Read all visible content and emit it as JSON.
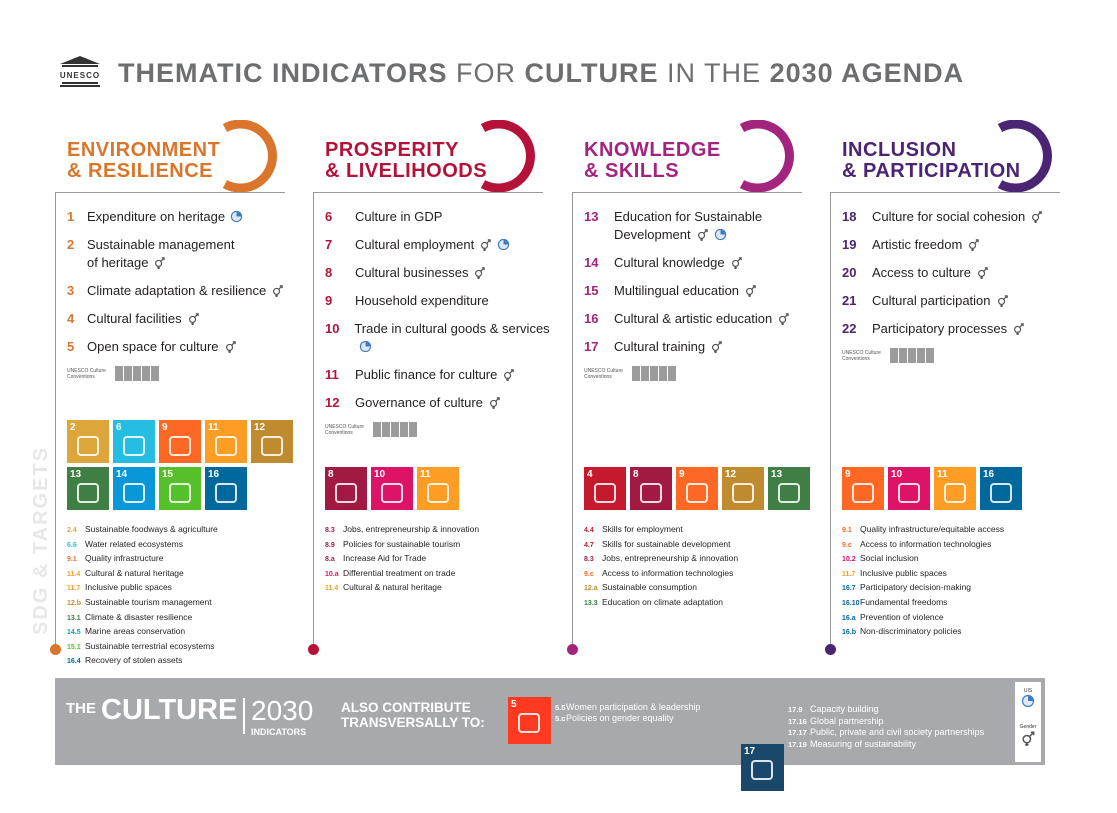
{
  "header": {
    "logo": "UNESCO",
    "title_parts": [
      "THEMATIC INDICATORS",
      "FOR",
      "CULTURE",
      "IN THE",
      "2030 AGENDA"
    ]
  },
  "sidebar_label": "SDG & TARGETS",
  "columns": [
    {
      "title_lines": [
        "ENVIRONMENT",
        "& RESILIENCE"
      ],
      "color": "#d9762b",
      "indicators": [
        {
          "number": "1",
          "label_lines": [
            "Expenditure on heritage"
          ],
          "gender": false,
          "uis": true
        },
        {
          "number": "2",
          "label_lines": [
            "Sustainable management",
            "of heritage"
          ],
          "gender": true,
          "uis": false
        },
        {
          "number": "3",
          "label_lines": [
            "Climate adaptation & resilience"
          ],
          "gender": true,
          "uis": false
        },
        {
          "number": "4",
          "label_lines": [
            "Cultural facilities"
          ],
          "gender": true,
          "uis": false
        },
        {
          "number": "5",
          "label_lines": [
            "Open space for culture"
          ],
          "gender": true,
          "uis": false
        }
      ],
      "conventions_label": "UNESCO Culture Conventions",
      "sdgs": [
        {
          "number": "2",
          "color": "#dda63a"
        },
        {
          "number": "6",
          "color": "#26bde2"
        },
        {
          "number": "9",
          "color": "#fd6925"
        },
        {
          "number": "11",
          "color": "#fd9d24"
        },
        {
          "number": "12",
          "color": "#bf8b2e"
        },
        {
          "number": "13",
          "color": "#3f7e44"
        },
        {
          "number": "14",
          "color": "#0a97d9"
        },
        {
          "number": "15",
          "color": "#56c02b"
        },
        {
          "number": "16",
          "color": "#00689d"
        }
      ],
      "targets": [
        {
          "code": "2.4",
          "color": "#dda63a",
          "text": "Sustainable foodways & agriculture"
        },
        {
          "code": "6.6",
          "color": "#26bde2",
          "text": "Water related ecosystems"
        },
        {
          "code": "9.1",
          "color": "#fd6925",
          "text": "Quality infrastructure"
        },
        {
          "code": "11.4",
          "color": "#fd9d24",
          "text": "Cultural & natural heritage"
        },
        {
          "code": "11.7",
          "color": "#fd9d24",
          "text": "Inclusive public spaces"
        },
        {
          "code": "12.b",
          "color": "#bf8b2e",
          "text": "Sustainable tourism management"
        },
        {
          "code": "13.1",
          "color": "#3f7e44",
          "text": "Climate & disaster resilience"
        },
        {
          "code": "14.5",
          "color": "#0a97d9",
          "text": "Marine areas conservation"
        },
        {
          "code": "15.1",
          "color": "#56c02b",
          "text": "Sustainable terrestrial ecosystems"
        },
        {
          "code": "16.4",
          "color": "#00689d",
          "text": "Recovery of stolen assets"
        }
      ]
    },
    {
      "title_lines": [
        "PROSPERITY",
        "& LIVELIHOODS"
      ],
      "color": "#b5123a",
      "indicators": [
        {
          "number": "6",
          "label_lines": [
            "Culture in GDP"
          ],
          "gender": false,
          "uis": false
        },
        {
          "number": "7",
          "label_lines": [
            "Cultural employment"
          ],
          "gender": true,
          "uis": true
        },
        {
          "number": "8",
          "label_lines": [
            "Cultural businesses"
          ],
          "gender": true,
          "uis": false
        },
        {
          "number": "9",
          "label_lines": [
            "Household expenditure"
          ],
          "gender": false,
          "uis": false
        },
        {
          "number": "10",
          "label_lines": [
            "Trade in cultural goods & services"
          ],
          "gender": false,
          "uis": true
        },
        {
          "number": "11",
          "label_lines": [
            "Public finance for culture"
          ],
          "gender": true,
          "uis": false
        },
        {
          "number": "12",
          "label_lines": [
            "Governance of culture"
          ],
          "gender": true,
          "uis": false
        }
      ],
      "conventions_label": "UNESCO Culture Conventions",
      "sdgs": [
        {
          "number": "8",
          "color": "#a21942"
        },
        {
          "number": "10",
          "color": "#dd1367"
        },
        {
          "number": "11",
          "color": "#fd9d24"
        }
      ],
      "targets": [
        {
          "code": "8.3",
          "color": "#a21942",
          "text": "Jobs, entrepreneurship & innovation"
        },
        {
          "code": "8.9",
          "color": "#a21942",
          "text": "Policies for sustainable tourism"
        },
        {
          "code": "8.a",
          "color": "#a21942",
          "text": "Increase Aid for Trade"
        },
        {
          "code": "10.a",
          "color": "#dd1367",
          "text": "Differential treatment on trade"
        },
        {
          "code": "11.4",
          "color": "#fd9d24",
          "text": "Cultural & natural heritage"
        }
      ]
    },
    {
      "title_lines": [
        "KNOWLEDGE",
        "& SKILLS"
      ],
      "color": "#a3247f",
      "indicators": [
        {
          "number": "13",
          "label_lines": [
            "Education for Sustainable",
            "Development"
          ],
          "gender": true,
          "uis": true
        },
        {
          "number": "14",
          "label_lines": [
            "Cultural knowledge"
          ],
          "gender": true,
          "uis": false
        },
        {
          "number": "15",
          "label_lines": [
            "Multilingual education"
          ],
          "gender": true,
          "uis": false
        },
        {
          "number": "16",
          "label_lines": [
            "Cultural & artistic education"
          ],
          "gender": true,
          "uis": false
        },
        {
          "number": "17",
          "label_lines": [
            "Cultural training"
          ],
          "gender": true,
          "uis": false
        }
      ],
      "conventions_label": "UNESCO Culture Conventions",
      "sdgs": [
        {
          "number": "4",
          "color": "#c5192d"
        },
        {
          "number": "8",
          "color": "#a21942"
        },
        {
          "number": "9",
          "color": "#fd6925"
        },
        {
          "number": "12",
          "color": "#bf8b2e"
        },
        {
          "number": "13",
          "color": "#3f7e44"
        }
      ],
      "targets": [
        {
          "code": "4.4",
          "color": "#c5192d",
          "text": "Skills for employment"
        },
        {
          "code": "4.7",
          "color": "#c5192d",
          "text": "Skills for sustainable development"
        },
        {
          "code": "8.3",
          "color": "#a21942",
          "text": "Jobs, entrepreneurship & innovation"
        },
        {
          "code": "9.c",
          "color": "#fd6925",
          "text": "Access to information technologies"
        },
        {
          "code": "12.a",
          "color": "#bf8b2e",
          "text": "Sustainable consumption"
        },
        {
          "code": "13.3",
          "color": "#3f7e44",
          "text": "Education on climate adaptation"
        }
      ]
    },
    {
      "title_lines": [
        "INCLUSION",
        "& PARTICIPATION"
      ],
      "color": "#4b2474",
      "indicators": [
        {
          "number": "18",
          "label_lines": [
            "Culture for social cohesion"
          ],
          "gender": true,
          "uis": false
        },
        {
          "number": "19",
          "label_lines": [
            "Artistic freedom"
          ],
          "gender": true,
          "uis": false
        },
        {
          "number": "20",
          "label_lines": [
            "Access to culture"
          ],
          "gender": true,
          "uis": false
        },
        {
          "number": "21",
          "label_lines": [
            "Cultural participation"
          ],
          "gender": true,
          "uis": false
        },
        {
          "number": "22",
          "label_lines": [
            "Participatory processes"
          ],
          "gender": true,
          "uis": false
        }
      ],
      "conventions_label": "UNESCO Culture Conventions",
      "sdgs": [
        {
          "number": "9",
          "color": "#fd6925"
        },
        {
          "number": "10",
          "color": "#dd1367"
        },
        {
          "number": "11",
          "color": "#fd9d24"
        },
        {
          "number": "16",
          "color": "#00689d"
        }
      ],
      "targets": [
        {
          "code": "9.1",
          "color": "#fd6925",
          "text": "Quality infrastructure/equitable access"
        },
        {
          "code": "9.c",
          "color": "#fd6925",
          "text": "Access to information technologies"
        },
        {
          "code": "10.2",
          "color": "#dd1367",
          "text": "Social inclusion"
        },
        {
          "code": "11.7",
          "color": "#fd9d24",
          "text": "Inclusive public spaces"
        },
        {
          "code": "16.7",
          "color": "#00689d",
          "text": "Participatory decision-making"
        },
        {
          "code": "16.10",
          "color": "#00689d",
          "text": "Fundamental freedoms"
        },
        {
          "code": "16.a",
          "color": "#00689d",
          "text": "Prevention of violence"
        },
        {
          "code": "16.b",
          "color": "#00689d",
          "text": "Non-discriminatory policies"
        }
      ]
    }
  ],
  "footer": {
    "the": "THE",
    "culture": "CULTURE",
    "year": "2030",
    "indicators": "INDICATORS",
    "contribute_lines": [
      "ALSO CONTRIBUTE",
      "TRANSVERSALLY TO:"
    ],
    "groups": [
      {
        "sdg": {
          "number": "5",
          "color": "#ff3a21"
        },
        "targets": [
          {
            "code": "5.5",
            "text": "Women participation & leadership"
          },
          {
            "code": "5.c",
            "text": "Policies on gender equality"
          }
        ]
      },
      {
        "sdg": {
          "number": "17",
          "color": "#19486a"
        },
        "targets": [
          {
            "code": "17.9",
            "text": "Capacity building"
          },
          {
            "code": "17.16",
            "text": "Global partnership"
          },
          {
            "code": "17.17",
            "text": "Public, private and civil society partnerships"
          },
          {
            "code": "17.19",
            "text": "Measuring of sustainability"
          }
        ]
      }
    ],
    "legend": {
      "uis": "UIS",
      "gender": "Gender"
    }
  }
}
